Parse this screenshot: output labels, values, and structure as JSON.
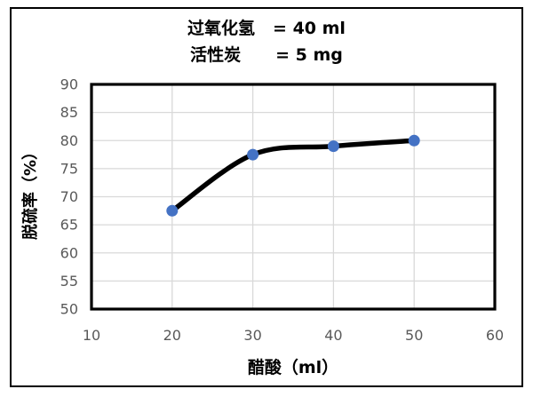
{
  "figure": {
    "title_lines": [
      {
        "label": "过氧化氢",
        "value": "= 40 ml"
      },
      {
        "label": "活性炭",
        "value": "= 5 mg"
      }
    ]
  },
  "chart_data": {
    "type": "line",
    "title": "过氧化氢 = 40 ml ; 活性炭 = 5 mg",
    "series": [
      {
        "name": "脱硫率",
        "x": [
          20,
          30,
          40,
          50
        ],
        "y": [
          67.5,
          77.5,
          79,
          80
        ]
      }
    ],
    "xlabel": "醋酸（ml）",
    "ylabel": "脱硫率（%）",
    "xlim": [
      10,
      60
    ],
    "ylim": [
      50,
      90
    ],
    "x_ticks": [
      10,
      20,
      30,
      40,
      50,
      60
    ],
    "y_ticks": [
      90,
      85,
      80,
      75,
      70,
      65,
      60,
      55,
      50
    ],
    "grid": true,
    "smooth": true,
    "legend": "none",
    "colors": {
      "line": "#000000",
      "marker": "#4472C4",
      "gridline": "#D9D9D9",
      "tick_label": "#595959",
      "plot_border": "#000000",
      "figure_border": "#000000"
    }
  }
}
